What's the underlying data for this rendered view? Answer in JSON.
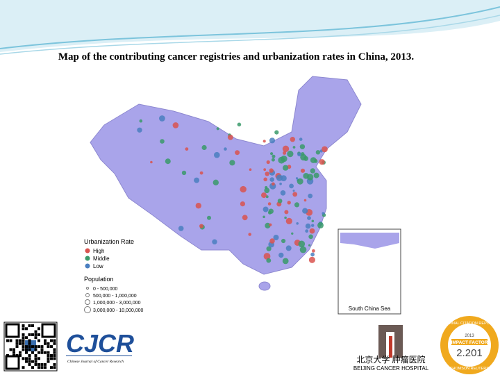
{
  "header": {
    "title": "Map of the contributing cancer registries and urbanization rates in China, 2013."
  },
  "legend": {
    "title": "Urbanization Rate",
    "items": [
      "High",
      "Middle",
      "Low"
    ],
    "population_title": "Population",
    "population_items": [
      "0 - 500,000",
      "500,000 - 1,000,000",
      "1,000,000 - 3,000,000",
      "3,000,000 - 10,000,000"
    ]
  },
  "inset": {
    "label": "South China Sea"
  },
  "footer": {
    "journal": "CJCR",
    "journal_full": "Chinese Journal of Cancer Research",
    "hospital_cn": "北京大学 肿瘤医院",
    "hospital_en": "BEIJING CANCER HOSPITAL",
    "badge": {
      "arc_top": "JOURNAL CITATION REPORTS",
      "year": "2013",
      "label": "IMPACT FACTOR",
      "value": "2.201",
      "arc_bottom": "THOMSON REUTERS"
    }
  }
}
